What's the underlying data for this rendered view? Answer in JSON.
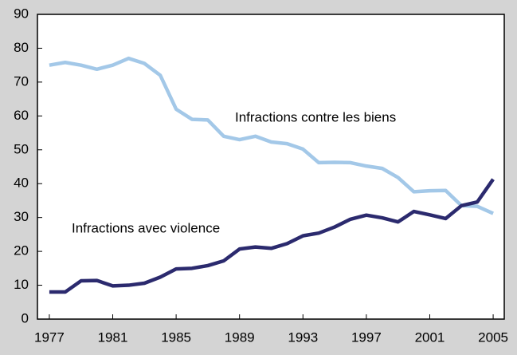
{
  "chart_data": {
    "type": "line",
    "x": [
      1977,
      1978,
      1979,
      1980,
      1981,
      1982,
      1983,
      1984,
      1985,
      1986,
      1987,
      1988,
      1989,
      1990,
      1991,
      1992,
      1993,
      1994,
      1995,
      1996,
      1997,
      1998,
      1999,
      2000,
      2001,
      2002,
      2003,
      2004,
      2005
    ],
    "series": [
      {
        "name": "Infractions contre les biens",
        "color": "#a3c8e8",
        "values": [
          75,
          75.8,
          75,
          73.8,
          75,
          77,
          75.5,
          72,
          62,
          59,
          58.8,
          54,
          53,
          54,
          52.3,
          51.8,
          50.2,
          46.2,
          46.3,
          46.2,
          45.2,
          44.5,
          41.8,
          37.6,
          37.9,
          38,
          33.5,
          33.3,
          31.2
        ]
      },
      {
        "name": "Infractions avec violence",
        "color": "#2b2a6e",
        "values": [
          8,
          8,
          11.3,
          11.4,
          9.8,
          10,
          10.6,
          12.4,
          14.8,
          15,
          15.8,
          17.2,
          20.7,
          21.3,
          20.9,
          22.3,
          24.6,
          25.4,
          27.2,
          29.5,
          30.7,
          29.9,
          28.7,
          31.8,
          30.8,
          29.7,
          33.5,
          34.6,
          41.3
        ]
      }
    ],
    "xlim": [
      1976.25,
      2005.7
    ],
    "xticks": [
      1977,
      1981,
      1985,
      1989,
      1993,
      1997,
      2001,
      2005
    ],
    "ylim": [
      0,
      90
    ],
    "yticks": [
      0,
      10,
      20,
      30,
      40,
      50,
      60,
      70,
      80,
      90
    ]
  }
}
